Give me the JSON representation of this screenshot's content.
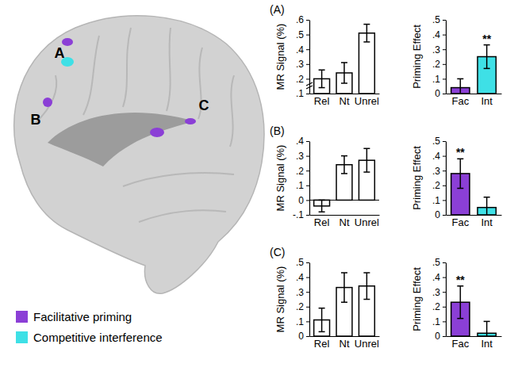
{
  "chart_data": [
    {
      "type": "bar",
      "title": "(A)",
      "ylabel": "MR Signal (%)",
      "categories": [
        "Rel",
        "Nt",
        "Unrel"
      ],
      "values": [
        0.2,
        0.24,
        0.51
      ],
      "errors": [
        0.06,
        0.07,
        0.06
      ],
      "color": "#ffffff",
      "ylim": [
        0.1,
        0.6
      ],
      "yticks": [
        {
          "value": 0.1,
          "label": ".1"
        },
        {
          "value": 0.2,
          "label": ".2"
        },
        {
          "value": 0.3,
          "label": ".3"
        },
        {
          "value": 0.4,
          "label": ".4"
        },
        {
          "value": 0.5,
          "label": ".5"
        },
        {
          "value": 0.6,
          "label": ".6"
        }
      ]
    },
    {
      "type": "bar",
      "ylabel": "Priming Effect",
      "categories": [
        "Fac",
        "Int"
      ],
      "values": [
        0.04,
        0.25
      ],
      "errors": [
        0.06,
        0.08
      ],
      "colors": [
        "#8b3fd6",
        "#3ee0e6"
      ],
      "ylim": [
        0,
        0.5
      ],
      "yticks": [
        0,
        {
          "value": 0.1,
          "label": ".1"
        },
        {
          "value": 0.2,
          "label": ".2"
        },
        {
          "value": 0.3,
          "label": ".3"
        },
        {
          "value": 0.4,
          "label": ".4"
        },
        {
          "value": 0.5,
          "label": ".5"
        }
      ],
      "annotations": [
        {
          "category": "Int",
          "text": "**"
        }
      ]
    },
    {
      "type": "bar",
      "title": "(B)",
      "ylabel": "MR Signal (%)",
      "categories": [
        "Rel",
        "Nt",
        "Unrel"
      ],
      "values": [
        -0.04,
        0.24,
        0.27
      ],
      "errors": [
        0.04,
        0.06,
        0.08
      ],
      "color": "#ffffff",
      "ylim": [
        -0.1,
        0.4
      ],
      "yticks": [
        {
          "value": -0.1,
          "label": "-.1"
        },
        0,
        {
          "value": 0.1,
          "label": ".1"
        },
        {
          "value": 0.2,
          "label": ".2"
        },
        {
          "value": 0.3,
          "label": ".3"
        },
        {
          "value": 0.4,
          "label": ".4"
        }
      ]
    },
    {
      "type": "bar",
      "ylabel": "Priming Effect",
      "categories": [
        "Fac",
        "Int"
      ],
      "values": [
        0.28,
        0.05
      ],
      "errors": [
        0.1,
        0.07
      ],
      "colors": [
        "#8b3fd6",
        "#3ee0e6"
      ],
      "ylim": [
        0,
        0.5
      ],
      "yticks": [
        0,
        {
          "value": 0.1,
          "label": ".1"
        },
        {
          "value": 0.2,
          "label": ".2"
        },
        {
          "value": 0.3,
          "label": ".3"
        },
        {
          "value": 0.4,
          "label": ".4"
        },
        {
          "value": 0.5,
          "label": ".5"
        }
      ],
      "annotations": [
        {
          "category": "Fac",
          "text": "**"
        }
      ]
    },
    {
      "type": "bar",
      "title": "(C)",
      "ylabel": "MR Signal (%)",
      "categories": [
        "Rel",
        "Nt",
        "Unrel"
      ],
      "values": [
        0.11,
        0.33,
        0.34
      ],
      "errors": [
        0.08,
        0.1,
        0.09
      ],
      "color": "#ffffff",
      "ylim": [
        0,
        0.5
      ],
      "yticks": [
        0,
        {
          "value": 0.1,
          "label": ".1"
        },
        {
          "value": 0.2,
          "label": ".2"
        },
        {
          "value": 0.3,
          "label": ".3"
        },
        {
          "value": 0.4,
          "label": ".4"
        },
        {
          "value": 0.5,
          "label": ".5"
        }
      ]
    },
    {
      "type": "bar",
      "ylabel": "Priming Effect",
      "categories": [
        "Fac",
        "Int"
      ],
      "values": [
        0.23,
        0.02
      ],
      "errors": [
        0.11,
        0.08
      ],
      "colors": [
        "#8b3fd6",
        "#3ee0e6"
      ],
      "ylim": [
        0,
        0.5
      ],
      "yticks": [
        0,
        {
          "value": 0.1,
          "label": ".1"
        },
        {
          "value": 0.2,
          "label": ".2"
        },
        {
          "value": 0.3,
          "label": ".3"
        },
        {
          "value": 0.4,
          "label": ".4"
        },
        {
          "value": 0.5,
          "label": ".5"
        }
      ],
      "annotations": [
        {
          "category": "Fac",
          "text": "**"
        }
      ]
    }
  ],
  "figure": {
    "regions": [
      {
        "label": "A"
      },
      {
        "label": "B"
      },
      {
        "label": "C"
      }
    ],
    "legend": [
      {
        "name": "Facilitative priming",
        "color": "#8b3fd6"
      },
      {
        "name": "Competitive interference",
        "color": "#3ee0e6"
      }
    ]
  }
}
